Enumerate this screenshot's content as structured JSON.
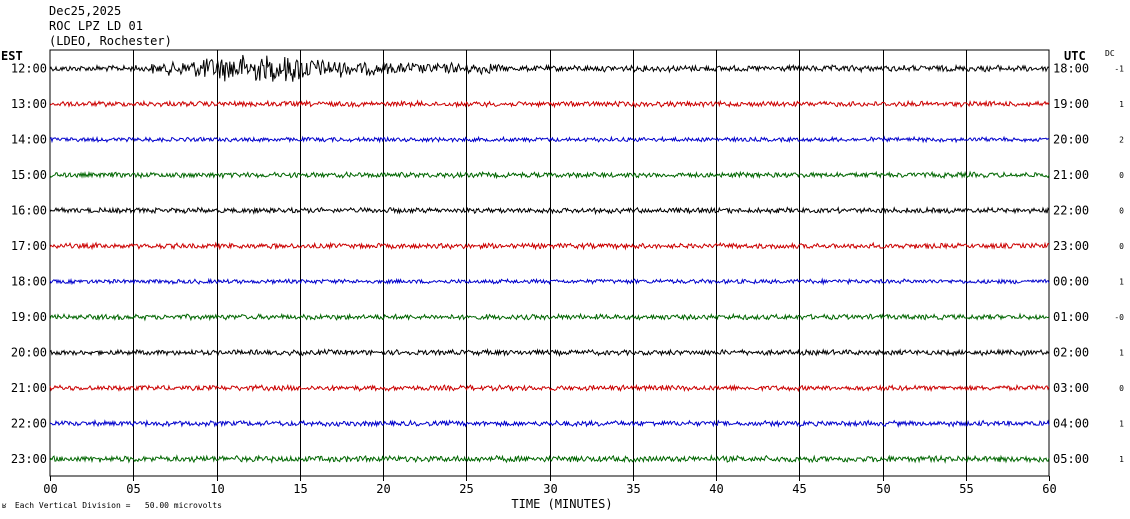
{
  "header": {
    "date": "Dec25,2025",
    "station": "ROC LPZ LD 01",
    "network": "(LDEO, Rochester)"
  },
  "left_zone": "EST",
  "right_zone": "UTC",
  "dc_label": "DC",
  "footnote": {
    "logo": "ʁ",
    "text": "Each Vertical Division =   50.00 microvolts"
  },
  "chart_data": {
    "type": "line",
    "title": "",
    "xlabel": "TIME (MINUTES)",
    "ylabel": "",
    "xlim": [
      0,
      60
    ],
    "x_ticks": [
      "00",
      "05",
      "10",
      "15",
      "20",
      "25",
      "30",
      "35",
      "40",
      "45",
      "50",
      "55",
      "60"
    ],
    "grid": true,
    "series": [
      {
        "left_hour": "12:00",
        "right_hour": "18:00",
        "dc": "-1",
        "color": "#000000",
        "amp": 3.5,
        "burst": 1
      },
      {
        "left_hour": "13:00",
        "right_hour": "19:00",
        "dc": "1",
        "color": "#cc0000",
        "amp": 3,
        "burst": 0
      },
      {
        "left_hour": "14:00",
        "right_hour": "20:00",
        "dc": "2",
        "color": "#0000cc",
        "amp": 2.5,
        "burst": 0
      },
      {
        "left_hour": "15:00",
        "right_hour": "21:00",
        "dc": "0",
        "color": "#006600",
        "amp": 3,
        "burst": 0
      },
      {
        "left_hour": "16:00",
        "right_hour": "22:00",
        "dc": "0",
        "color": "#000000",
        "amp": 3,
        "burst": 0
      },
      {
        "left_hour": "17:00",
        "right_hour": "23:00",
        "dc": "0",
        "color": "#cc0000",
        "amp": 3,
        "burst": 0
      },
      {
        "left_hour": "18:00",
        "right_hour": "00:00",
        "dc": "1",
        "color": "#0000cc",
        "amp": 2.5,
        "burst": 0
      },
      {
        "left_hour": "19:00",
        "right_hour": "01:00",
        "dc": "-0",
        "color": "#006600",
        "amp": 3,
        "burst": 0
      },
      {
        "left_hour": "20:00",
        "right_hour": "02:00",
        "dc": "1",
        "color": "#000000",
        "amp": 3,
        "burst": 0
      },
      {
        "left_hour": "21:00",
        "right_hour": "03:00",
        "dc": "0",
        "color": "#cc0000",
        "amp": 3,
        "burst": 0
      },
      {
        "left_hour": "22:00",
        "right_hour": "04:00",
        "dc": "1",
        "color": "#0000cc",
        "amp": 3,
        "burst": 0
      },
      {
        "left_hour": "23:00",
        "right_hour": "05:00",
        "dc": "1",
        "color": "#006600",
        "amp": 3.5,
        "burst": 0
      }
    ]
  }
}
